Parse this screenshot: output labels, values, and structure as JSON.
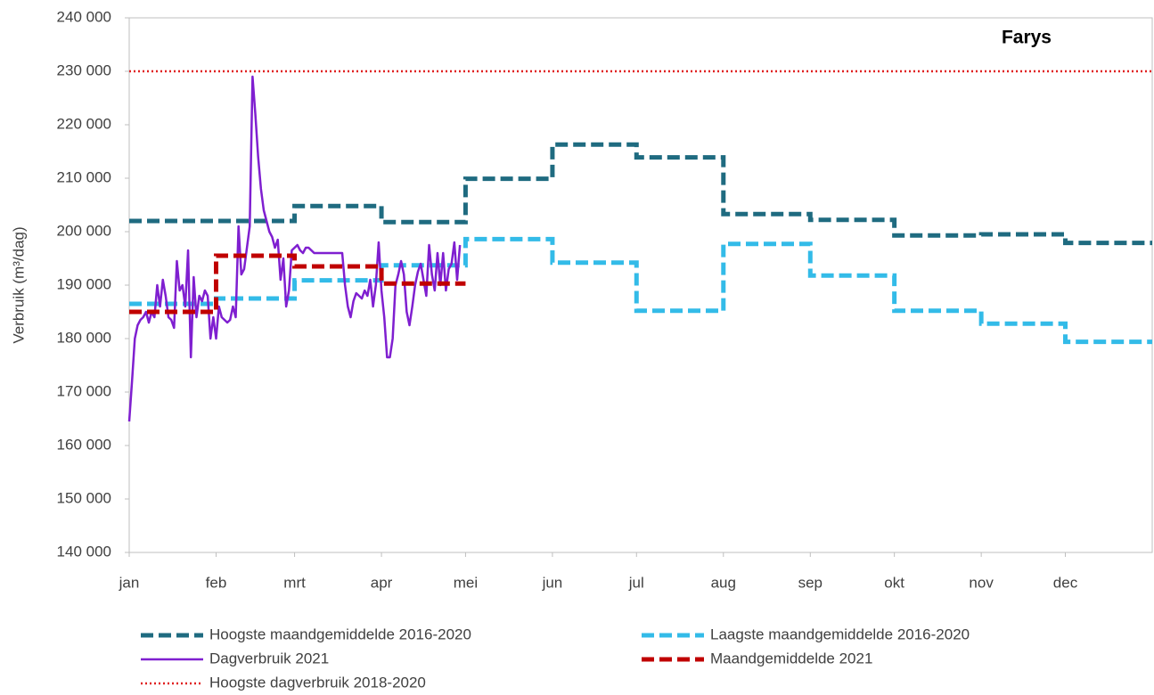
{
  "chart_data": {
    "type": "line",
    "title": "Farys",
    "ylabel": "Verbruik (m³/dag)",
    "xlim": [
      0,
      365
    ],
    "xticks": [
      {
        "value": 0,
        "label": "jan"
      },
      {
        "value": 31,
        "label": "feb"
      },
      {
        "value": 59,
        "label": "mrt"
      },
      {
        "value": 90,
        "label": "apr"
      },
      {
        "value": 120,
        "label": "mei"
      },
      {
        "value": 151,
        "label": "jun"
      },
      {
        "value": 181,
        "label": "jul"
      },
      {
        "value": 212,
        "label": "aug"
      },
      {
        "value": 243,
        "label": "sep"
      },
      {
        "value": 273,
        "label": "okt"
      },
      {
        "value": 304,
        "label": "nov"
      },
      {
        "value": 334,
        "label": "dec"
      }
    ],
    "ylim": [
      140000,
      240000
    ],
    "yticks": [
      {
        "value": 140000,
        "label": "140 000"
      },
      {
        "value": 150000,
        "label": "150 000"
      },
      {
        "value": 160000,
        "label": "160 000"
      },
      {
        "value": 170000,
        "label": "170 000"
      },
      {
        "value": 180000,
        "label": "180 000"
      },
      {
        "value": 190000,
        "label": "190 000"
      },
      {
        "value": 200000,
        "label": "200 000"
      },
      {
        "value": 210000,
        "label": "210 000"
      },
      {
        "value": 220000,
        "label": "220 000"
      },
      {
        "value": 230000,
        "label": "230 000"
      },
      {
        "value": 240000,
        "label": "240 000"
      }
    ],
    "series": [
      {
        "name": "Hoogste maandgemiddelde 2016-2020",
        "color": "#1f6b80",
        "drawstyle": "steps",
        "linestyle": "dashed",
        "x": [
          0,
          31,
          59,
          90,
          120,
          151,
          181,
          212,
          243,
          273,
          304,
          334
        ],
        "values": [
          202000,
          202000,
          204800,
          201800,
          209900,
          216300,
          213900,
          203300,
          202200,
          199300,
          199500,
          197900
        ]
      },
      {
        "name": "Laagste maandgemiddelde 2016-2020",
        "color": "#33bbe8",
        "drawstyle": "steps",
        "linestyle": "dashed",
        "x": [
          0,
          31,
          59,
          90,
          120,
          151,
          181,
          212,
          243,
          273,
          304,
          334
        ],
        "values": [
          186500,
          187500,
          190900,
          193700,
          198600,
          194200,
          185200,
          197700,
          191800,
          185200,
          182800,
          179400
        ]
      },
      {
        "name": "Dagverbruik 2021",
        "color": "#7f1fd0",
        "drawstyle": "line",
        "linestyle": "solid",
        "x": [
          0,
          1,
          2,
          3,
          4,
          5,
          6,
          7,
          8,
          9,
          10,
          11,
          12,
          13,
          14,
          15,
          16,
          17,
          18,
          19,
          20,
          21,
          22,
          23,
          24,
          25,
          26,
          27,
          28,
          29,
          30,
          31,
          32,
          33,
          34,
          35,
          36,
          37,
          38,
          39,
          40,
          41,
          42,
          43,
          44,
          45,
          46,
          47,
          48,
          49,
          50,
          51,
          52,
          53,
          54,
          55,
          56,
          57,
          58,
          59,
          60,
          61,
          62,
          63,
          64,
          65,
          66,
          67,
          68,
          69,
          70,
          71,
          72,
          73,
          74,
          75,
          76,
          77,
          78,
          79,
          80,
          81,
          82,
          83,
          84,
          85,
          86,
          87,
          88,
          89,
          90,
          91,
          92,
          93,
          94,
          95,
          96,
          97,
          98,
          99,
          100,
          101,
          102,
          103,
          104,
          105,
          106,
          107,
          108,
          109,
          110,
          111,
          112,
          113,
          114,
          115,
          116,
          117,
          118
        ],
        "values": [
          164500,
          172000,
          180000,
          182500,
          183500,
          184000,
          185000,
          183000,
          185000,
          184000,
          190000,
          186000,
          191000,
          188000,
          184000,
          183500,
          182000,
          194500,
          189000,
          190000,
          186000,
          196500,
          176500,
          191500,
          184000,
          188000,
          187000,
          189000,
          188000,
          180000,
          184000,
          180000,
          186000,
          184000,
          183500,
          183000,
          183500,
          186000,
          184000,
          201000,
          192000,
          193000,
          197000,
          201000,
          229000,
          222000,
          214000,
          208000,
          204000,
          202000,
          200000,
          199000,
          197000,
          198500,
          191000,
          195000,
          186000,
          189000,
          196500,
          197000,
          197500,
          196500,
          196000,
          197000,
          197000,
          196500,
          196000,
          196000,
          196000,
          196000,
          196000,
          196000,
          196000,
          196000,
          196000,
          196000,
          196000,
          190000,
          186000,
          184000,
          187000,
          188500,
          188000,
          187500,
          189000,
          188000,
          191000,
          186000,
          190000,
          198000,
          189000,
          184000,
          176500,
          176500,
          180000,
          190000,
          192000,
          194500,
          192000,
          185000,
          182500,
          186000,
          190000,
          192500,
          194000,
          191000,
          188000,
          197500,
          192000,
          189000,
          196000,
          190000,
          196000,
          189000,
          193000,
          194000,
          198000,
          191000,
          197500
        ]
      },
      {
        "name": "Maandgemiddelde 2021",
        "color": "#c00000",
        "drawstyle": "steps",
        "linestyle": "dashed",
        "x": [
          0,
          31,
          59,
          90
        ],
        "values": [
          185000,
          195500,
          193500,
          190300
        ]
      },
      {
        "name": "Hoogste dagverbruik 2018-2020",
        "color": "#e02020",
        "drawstyle": "hline",
        "linestyle": "dotted",
        "values": [
          230000
        ]
      }
    ]
  }
}
